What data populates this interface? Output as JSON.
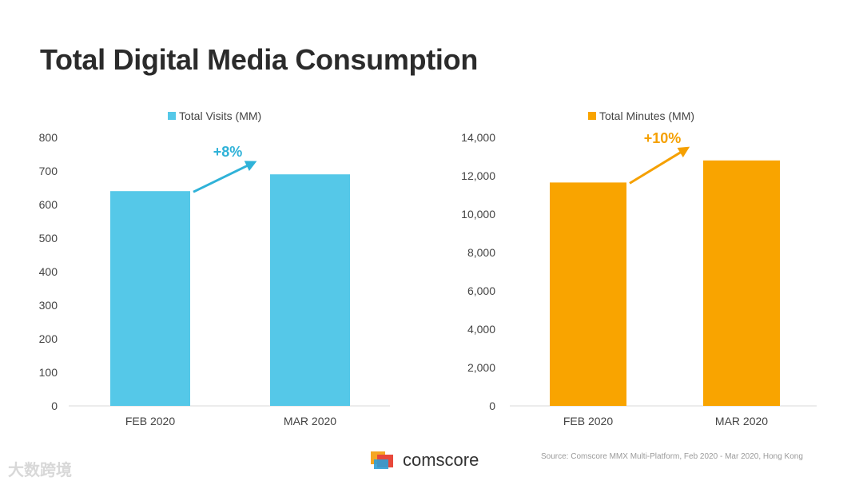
{
  "title": "Total Digital Media Consumption",
  "source": "Source: Comscore MMX Multi-Platform, Feb 2020 - Mar 2020, Hong Kong",
  "logo_text": "comscore",
  "watermark": "大数跨境",
  "chart_data": [
    {
      "type": "bar",
      "legend": "Total Visits (MM)",
      "color": "#55c8e8",
      "categories": [
        "FEB 2020",
        "MAR 2020"
      ],
      "values": [
        640,
        690
      ],
      "ylim": [
        0,
        800
      ],
      "yticks": [
        0,
        100,
        200,
        300,
        400,
        500,
        600,
        700,
        800
      ],
      "ytick_labels": [
        "0",
        "100",
        "200",
        "300",
        "400",
        "500",
        "600",
        "700",
        "800"
      ],
      "annotation": "+8%",
      "annotation_color": "#2fb2d8"
    },
    {
      "type": "bar",
      "legend": "Total Minutes (MM)",
      "color": "#f9a400",
      "categories": [
        "FEB 2020",
        "MAR 2020"
      ],
      "values": [
        11650,
        12800
      ],
      "ylim": [
        0,
        14000
      ],
      "yticks": [
        0,
        2000,
        4000,
        6000,
        8000,
        10000,
        12000,
        14000
      ],
      "ytick_labels": [
        "0",
        "2,000",
        "4,000",
        "6,000",
        "8,000",
        "10,000",
        "12,000",
        "14,000"
      ],
      "annotation": "+10%",
      "annotation_color": "#f5a000"
    }
  ]
}
